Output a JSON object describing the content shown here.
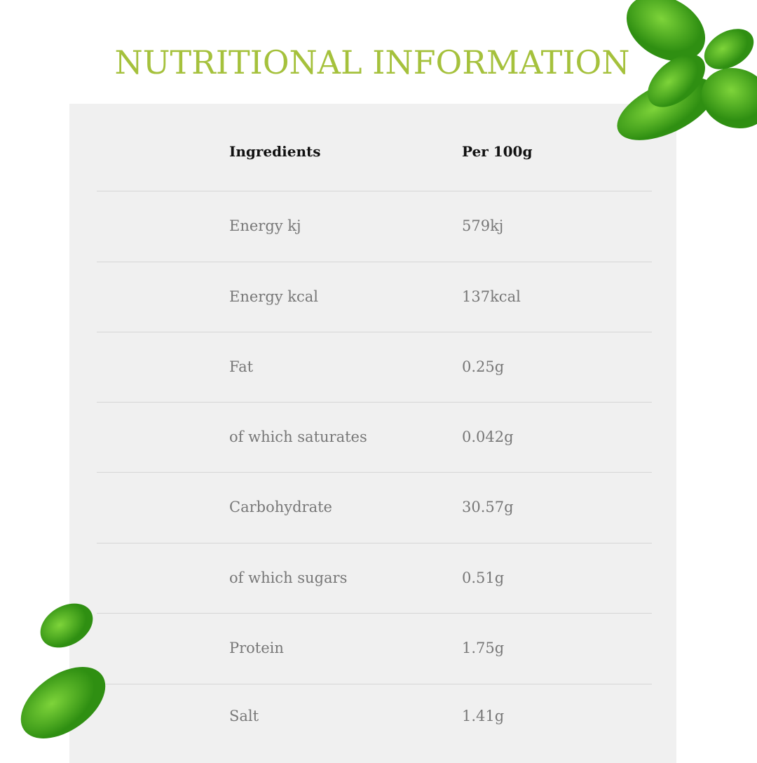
{
  "title": "NUTRITIONAL INFORMATION",
  "colors": {
    "title": "#a5c13c",
    "panel": "#f0f0f0",
    "leaf": "#4caf1f"
  },
  "table": {
    "headers": [
      "Ingredients",
      "Per 100g"
    ],
    "rows": [
      {
        "name": "Energy kj",
        "value": "579kj"
      },
      {
        "name": "Energy kcal",
        "value": "137kcal"
      },
      {
        "name": "Fat",
        "value": "0.25g"
      },
      {
        "name": "of which saturates",
        "value": "0.042g"
      },
      {
        "name": "Carbohydrate",
        "value": "30.57g"
      },
      {
        "name": "of which sugars",
        "value": "0.51g"
      },
      {
        "name": "Protein",
        "value": "1.75g"
      },
      {
        "name": "Salt",
        "value": "1.41g"
      }
    ]
  }
}
